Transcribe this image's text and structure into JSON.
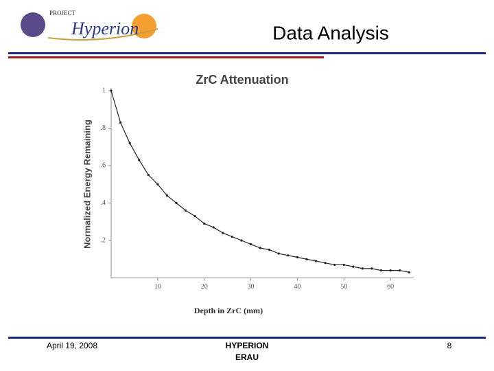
{
  "logo": {
    "project": "PROJECT",
    "name": "Hyperion"
  },
  "header": {
    "title": "Data Analysis"
  },
  "footer": {
    "date": "April 19, 2008",
    "org": [
      "HYPERION",
      "ERAU"
    ],
    "page": "8"
  },
  "chart_data": {
    "type": "line",
    "title": "ZrC Attenuation",
    "xlabel": "Depth in ZrC (mm)",
    "ylabel": "Normalized Energy Remaining",
    "x": [
      0,
      2,
      4,
      6,
      8,
      10,
      12,
      14,
      16,
      18,
      20,
      22,
      24,
      26,
      28,
      30,
      32,
      34,
      36,
      38,
      40,
      42,
      44,
      46,
      48,
      50,
      52,
      54,
      56,
      58,
      60,
      62,
      64
    ],
    "series": [
      {
        "name": "ZrC",
        "color": "#222222",
        "values": [
          1.0,
          0.83,
          0.72,
          0.63,
          0.55,
          0.5,
          0.44,
          0.4,
          0.36,
          0.33,
          0.29,
          0.27,
          0.24,
          0.22,
          0.2,
          0.18,
          0.16,
          0.15,
          0.13,
          0.12,
          0.11,
          0.1,
          0.09,
          0.08,
          0.07,
          0.07,
          0.06,
          0.05,
          0.05,
          0.04,
          0.04,
          0.04,
          0.03
        ]
      }
    ],
    "xlim": [
      0,
      65
    ],
    "xticks": [
      10,
      20,
      30,
      40,
      50,
      60
    ],
    "ylim": [
      0,
      1
    ],
    "yticks": [
      {
        "value": 0.2,
        "label": ".2"
      },
      {
        "value": 0.4,
        "label": ".4"
      },
      {
        "value": 0.6,
        "label": ".6"
      },
      {
        "value": 0.8,
        "label": ".8"
      },
      1
    ],
    "grid": false
  }
}
